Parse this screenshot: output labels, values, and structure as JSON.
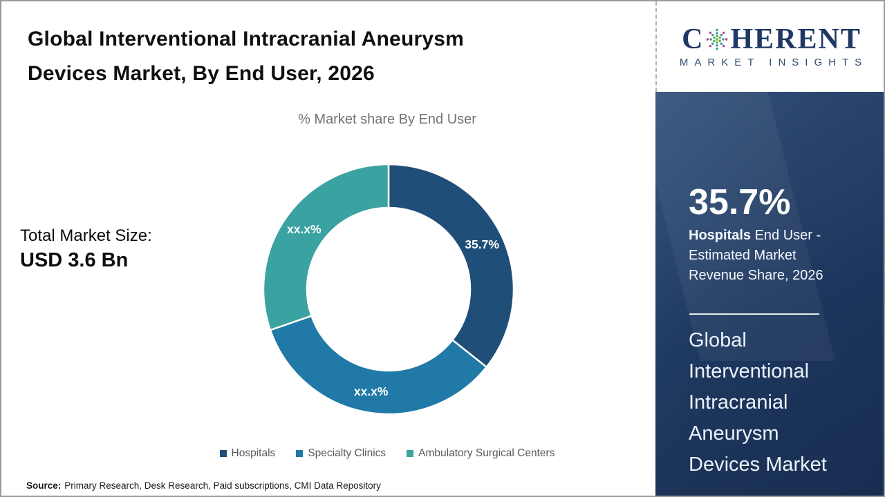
{
  "header": {
    "title_lines": [
      "Global Interventional Intracranial Aneurysm",
      "Devices Market, By End User, 2026"
    ]
  },
  "total_market": {
    "label": "Total Market Size:",
    "value": "USD 3.6 Bn"
  },
  "chart_data": {
    "type": "pie",
    "subtype": "donut",
    "title": "% Market share By End User",
    "categories": [
      "Hospitals",
      "Specialty Clinics",
      "Ambulatory Surgical Centers"
    ],
    "values": [
      35.7,
      34.0,
      30.3
    ],
    "slice_labels": [
      "35.7%",
      "xx.x%",
      "xx.x%"
    ],
    "colors": [
      "#1F4E79",
      "#2079A6",
      "#3BA2A2"
    ],
    "hole_ratio": 0.65,
    "start_angle": 0,
    "direction": "clockwise",
    "legend_position": "bottom",
    "label_color": "#FFFFFF",
    "legend_text_color": "#595959"
  },
  "source": {
    "label": "Source:",
    "text": "Primary Research, Desk Research, Paid subscriptions, CMI Data Repository"
  },
  "sidebar": {
    "logo": {
      "word_start": "C",
      "word_end": "HERENT",
      "tagline": "MARKET INSIGHTS",
      "navy": "#1F3864",
      "globe_colors": {
        "outer_pink": "#C23F80",
        "ring_teal": "#2D9AA5",
        "core_green": "#5FAE3F"
      }
    },
    "stat": {
      "value": "35.7%",
      "desc_line1_bold": "Hospitals",
      "desc_line1_rest": " End User -",
      "desc_line2": "Estimated Market",
      "desc_line3": "Revenue Share, 2026"
    },
    "market_name_lines": [
      "Global",
      "Interventional",
      "Intracranial",
      "Aneurysm",
      "Devices Market"
    ],
    "colors": {
      "bg": "#1F3A63",
      "text": "#EAF2FA"
    }
  }
}
